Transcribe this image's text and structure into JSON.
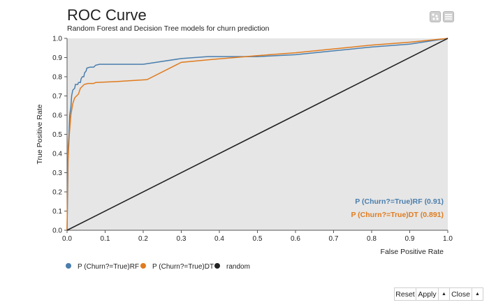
{
  "chart_data": {
    "type": "line",
    "title": "ROC Curve",
    "subtitle": "Random Forest and Decision Tree models for churn prediction",
    "xlabel": "False Positive Rate",
    "ylabel": "True Positive Rate",
    "xlim": [
      0,
      1
    ],
    "ylim": [
      0,
      1
    ],
    "x_ticks": [
      "0.0",
      "0.1",
      "0.2",
      "0.3",
      "0.4",
      "0.5",
      "0.6",
      "0.7",
      "0.8",
      "0.9",
      "1.0"
    ],
    "y_ticks": [
      "0.0",
      "0.1",
      "0.2",
      "0.3",
      "0.4",
      "0.5",
      "0.6",
      "0.7",
      "0.8",
      "0.9",
      "1.0"
    ],
    "grid": false,
    "legend_position": "bottom-left",
    "series": [
      {
        "name": "P (Churn?=True)RF",
        "color": "#4a7ead",
        "points": [
          [
            0,
            0
          ],
          [
            0.002,
            0.25
          ],
          [
            0.003,
            0.44
          ],
          [
            0.005,
            0.5
          ],
          [
            0.007,
            0.6
          ],
          [
            0.01,
            0.64
          ],
          [
            0.012,
            0.7
          ],
          [
            0.015,
            0.73
          ],
          [
            0.02,
            0.74
          ],
          [
            0.022,
            0.76
          ],
          [
            0.028,
            0.76
          ],
          [
            0.03,
            0.77
          ],
          [
            0.035,
            0.77
          ],
          [
            0.037,
            0.79
          ],
          [
            0.04,
            0.8
          ],
          [
            0.044,
            0.8
          ],
          [
            0.046,
            0.82
          ],
          [
            0.05,
            0.83
          ],
          [
            0.052,
            0.845
          ],
          [
            0.06,
            0.85
          ],
          [
            0.07,
            0.85
          ],
          [
            0.075,
            0.86
          ],
          [
            0.085,
            0.865
          ],
          [
            0.2,
            0.865
          ],
          [
            0.3,
            0.895
          ],
          [
            0.37,
            0.905
          ],
          [
            0.5,
            0.905
          ],
          [
            0.6,
            0.915
          ],
          [
            0.7,
            0.935
          ],
          [
            0.8,
            0.955
          ],
          [
            0.9,
            0.97
          ],
          [
            1,
            1
          ]
        ]
      },
      {
        "name": "P (Churn?=True)DT",
        "color": "#e07b1f",
        "points": [
          [
            0,
            0
          ],
          [
            0.002,
            0.35
          ],
          [
            0.004,
            0.42
          ],
          [
            0.006,
            0.5
          ],
          [
            0.01,
            0.6
          ],
          [
            0.015,
            0.66
          ],
          [
            0.02,
            0.69
          ],
          [
            0.025,
            0.7
          ],
          [
            0.03,
            0.71
          ],
          [
            0.035,
            0.74
          ],
          [
            0.045,
            0.76
          ],
          [
            0.055,
            0.765
          ],
          [
            0.07,
            0.765
          ],
          [
            0.075,
            0.77
          ],
          [
            0.13,
            0.775
          ],
          [
            0.21,
            0.785
          ],
          [
            0.3,
            0.875
          ],
          [
            0.38,
            0.89
          ],
          [
            0.5,
            0.91
          ],
          [
            0.6,
            0.925
          ],
          [
            0.7,
            0.945
          ],
          [
            0.8,
            0.965
          ],
          [
            0.9,
            0.98
          ],
          [
            1,
            1
          ]
        ]
      },
      {
        "name": "random",
        "color": "#222222",
        "points": [
          [
            0,
            0
          ],
          [
            1,
            1
          ]
        ]
      }
    ],
    "annotations": [
      {
        "text": "P (Churn?=True)RF (0.91)",
        "color": "#4a7ead"
      },
      {
        "text": "P (Churn?=True)DT (0.891)",
        "color": "#e07b1f"
      }
    ]
  },
  "toolbar": {
    "icons": [
      "scatter-icon",
      "menu-icon"
    ]
  },
  "footer": {
    "reset_label": "Reset",
    "apply_label": "Apply",
    "close_label": "Close",
    "up_glyph": "▲"
  }
}
